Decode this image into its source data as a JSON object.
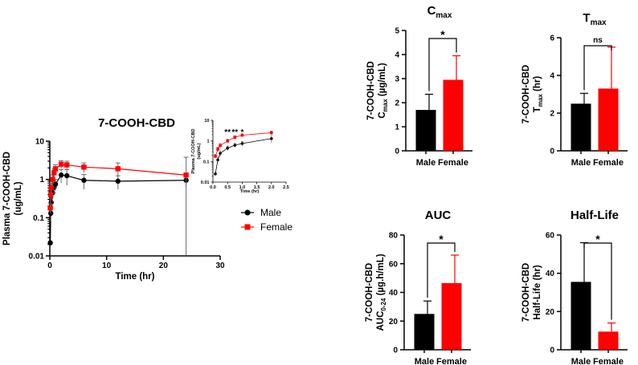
{
  "colors": {
    "male": "#000000",
    "female": "#ff0000",
    "axis": "#000000",
    "errbar": "#666666"
  },
  "chart_data": [
    {
      "id": "pk-main",
      "type": "line",
      "title": "7-COOH-CBD",
      "xlabel": "Time (hr)",
      "ylabel": "Plasma 7-COOH-CBD",
      "ylabel2": "(ug/mL)",
      "yscale": "log",
      "xlim": [
        0,
        30
      ],
      "ylim": [
        0.01,
        10
      ],
      "xticks": [
        "0",
        "10",
        "20",
        "30"
      ],
      "yticks": [
        "0.01",
        "0.1",
        "1",
        "10"
      ],
      "legend_position": "right",
      "series": [
        {
          "name": "Male",
          "marker": "circle",
          "x": [
            0.083,
            0.167,
            0.25,
            0.5,
            0.75,
            1,
            2,
            3,
            6,
            12,
            24
          ],
          "y": [
            0.022,
            0.13,
            0.25,
            0.45,
            0.62,
            0.75,
            1.3,
            1.25,
            0.95,
            0.9,
            0.95
          ],
          "err": [
            0,
            0.05,
            0.1,
            0.15,
            0.2,
            0.25,
            0.5,
            0.55,
            0.4,
            0.35,
            0.3
          ]
        },
        {
          "name": "Female",
          "marker": "square",
          "x": [
            0.083,
            0.167,
            0.25,
            0.5,
            0.75,
            1,
            2,
            3,
            6,
            12,
            24
          ],
          "y": [
            0.18,
            0.4,
            0.6,
            1.0,
            1.5,
            1.9,
            2.5,
            2.4,
            2.1,
            1.9,
            1.3
          ],
          "err": [
            0.05,
            0.15,
            0.2,
            0.3,
            0.4,
            0.5,
            0.6,
            0.6,
            0.6,
            0.8,
            2.5
          ]
        }
      ]
    },
    {
      "id": "pk-inset",
      "type": "line",
      "title": "",
      "xlabel": "Time (hr)",
      "ylabel": "Plasma 7-COOH-CBD",
      "ylabel2": "(ug/mL)",
      "yscale": "log",
      "xlim": [
        0,
        2.5
      ],
      "ylim": [
        0.01,
        10
      ],
      "xticks": [
        "0.0",
        "0.5",
        "1.0",
        "1.5",
        "2.0",
        "2.5"
      ],
      "yticks": [
        "0.01",
        "0.1",
        "1",
        "10"
      ],
      "annotations": [
        {
          "x": 0.5,
          "text": "**"
        },
        {
          "x": 0.75,
          "text": "**"
        },
        {
          "x": 1.0,
          "text": "*"
        }
      ],
      "series": [
        {
          "name": "Male",
          "marker": "circle",
          "x": [
            0.083,
            0.167,
            0.25,
            0.5,
            0.75,
            1,
            2
          ],
          "y": [
            0.025,
            0.12,
            0.25,
            0.45,
            0.62,
            0.75,
            1.3
          ],
          "err": [
            0,
            0.04,
            0.08,
            0.12,
            0.15,
            0.2,
            0.5
          ]
        },
        {
          "name": "Female",
          "marker": "square",
          "x": [
            0.083,
            0.167,
            0.25,
            0.5,
            0.75,
            1,
            2
          ],
          "y": [
            0.18,
            0.4,
            0.6,
            1.0,
            1.5,
            1.9,
            2.5
          ],
          "err": [
            0.04,
            0.1,
            0.15,
            0.2,
            0.3,
            0.3,
            0.5
          ]
        }
      ]
    },
    {
      "id": "cmax",
      "type": "bar",
      "title": "C",
      "title_sub": "max",
      "ylabel": "7-COOH-CBD",
      "ylabel2_pre": "C",
      "ylabel2_sub": "max",
      "ylabel2_post": " (µg/mL)",
      "categories": [
        "Male",
        "Female"
      ],
      "values": [
        1.7,
        2.95
      ],
      "errors": [
        0.65,
        1.0
      ],
      "ylim": [
        0,
        5
      ],
      "yticks": [
        "0",
        "1",
        "2",
        "3",
        "4",
        "5"
      ],
      "significance": "*"
    },
    {
      "id": "tmax",
      "type": "bar",
      "title": "T",
      "title_sub": "max",
      "ylabel": "7-COOH-CBD",
      "ylabel2_pre": "T",
      "ylabel2_sub": "max",
      "ylabel2_post": " (hr)",
      "categories": [
        "Male",
        "Female"
      ],
      "values": [
        2.5,
        3.3
      ],
      "errors": [
        0.55,
        2.2
      ],
      "ylim": [
        0,
        6
      ],
      "yticks": [
        "0",
        "2",
        "4",
        "6"
      ],
      "significance": "ns"
    },
    {
      "id": "auc",
      "type": "bar",
      "title": "AUC",
      "title_sub": "",
      "ylabel": "7-COOH-CBD",
      "ylabel2_pre": "AUC",
      "ylabel2_sub": "0-24",
      "ylabel2_post": " (µg.h/mL)",
      "categories": [
        "Male",
        "Female"
      ],
      "values": [
        25,
        46.5
      ],
      "errors": [
        9,
        19.5
      ],
      "ylim": [
        0,
        80
      ],
      "yticks": [
        "0",
        "20",
        "40",
        "60",
        "80"
      ],
      "significance": "*"
    },
    {
      "id": "halflife",
      "type": "bar",
      "title": "Half-Life",
      "title_sub": "",
      "ylabel": "7-COOH-CBD",
      "ylabel2_pre": "Half-Life (hr)",
      "ylabel2_sub": "",
      "ylabel2_post": "",
      "categories": [
        "Male",
        "Female"
      ],
      "values": [
        35.5,
        9.5
      ],
      "errors": [
        20.5,
        4.5
      ],
      "ylim": [
        0,
        60
      ],
      "yticks": [
        "0",
        "20",
        "40",
        "60"
      ],
      "significance": "*"
    }
  ]
}
